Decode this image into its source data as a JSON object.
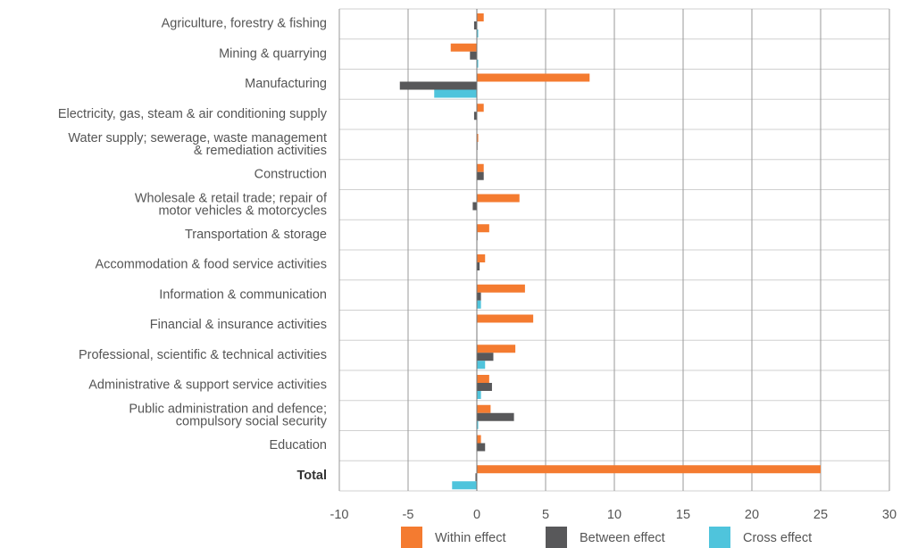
{
  "chart_data": {
    "type": "hbar",
    "categories": [
      "Agriculture, forestry & fishing",
      "Mining & quarrying",
      "Manufacturing",
      "Electricity, gas, steam & air conditioning supply",
      "Water supply; sewerage, waste management\n& remediation activities",
      "Construction",
      "Wholesale & retail trade; repair of\nmotor vehicles & motorcycles",
      "Transportation & storage",
      "Accommodation & food service activities",
      "Information & communication",
      "Financial & insurance activities",
      "Professional, scientific & technical activities",
      "Administrative & support service activities",
      "Public administration and defence;\ncompulsory social security",
      "Education",
      "Total"
    ],
    "series": [
      {
        "name": "Within effect",
        "color": "#f47b30",
        "values": [
          0.5,
          -1.9,
          8.2,
          0.5,
          0.1,
          0.5,
          3.1,
          0.9,
          0.6,
          3.5,
          4.1,
          2.8,
          0.9,
          1.0,
          0.3,
          25
        ]
      },
      {
        "name": "Between effect",
        "color": "#58585a",
        "values": [
          -0.2,
          -0.5,
          -5.6,
          -0.2,
          0.05,
          0.5,
          -0.3,
          0.05,
          0.2,
          0.3,
          0,
          1.2,
          1.1,
          2.7,
          0.6,
          -0.1
        ]
      },
      {
        "name": "Cross effect",
        "color": "#4fc4dc",
        "values": [
          0.1,
          0.1,
          -3.1,
          0,
          0,
          0,
          0,
          0,
          0,
          0.3,
          0,
          0.6,
          0.3,
          0.1,
          0,
          -1.8
        ]
      }
    ],
    "xlim": [
      -10,
      30
    ],
    "xticks": [
      -10,
      -5,
      0,
      5,
      10,
      15,
      20,
      25,
      30
    ],
    "grid": true,
    "legend": "bottom"
  }
}
